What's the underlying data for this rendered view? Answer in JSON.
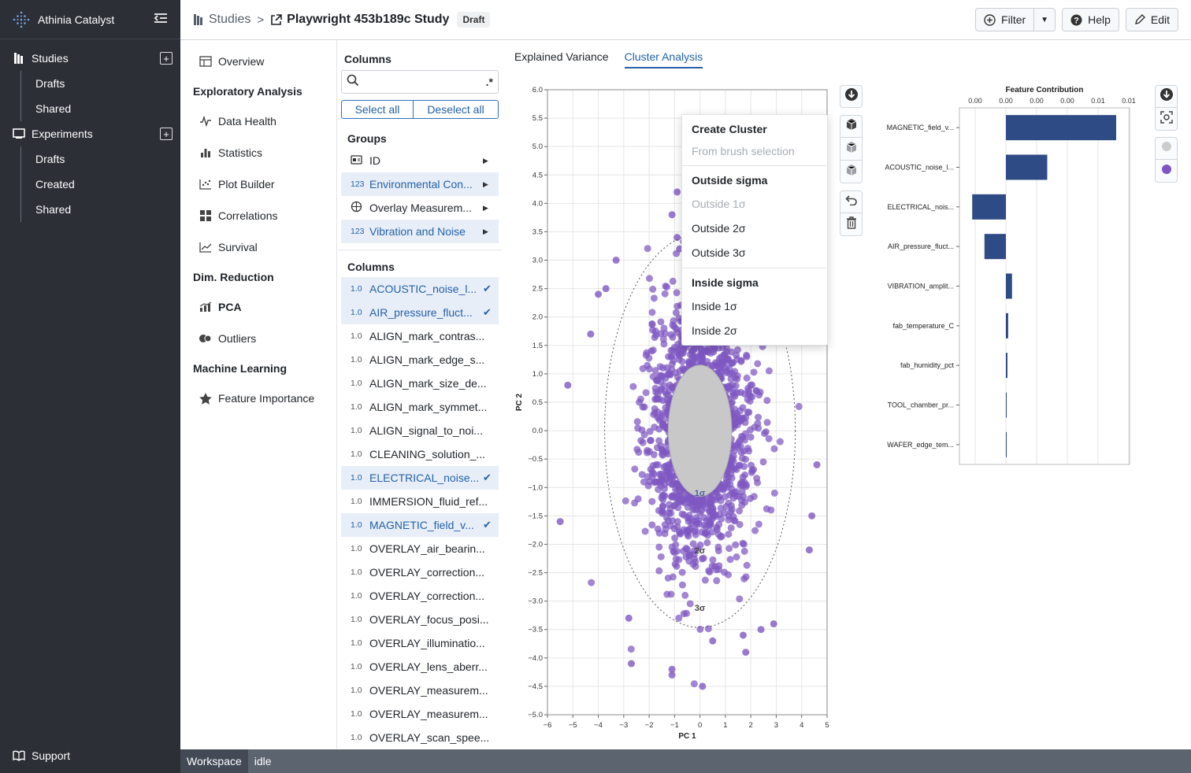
{
  "app": {
    "name": "Athinia Catalyst"
  },
  "sidebar": {
    "sections": [
      {
        "label": "Studies",
        "items": [
          "Drafts",
          "Shared"
        ]
      },
      {
        "label": "Experiments",
        "items": [
          "Drafts",
          "Created",
          "Shared"
        ]
      }
    ],
    "support": "Support"
  },
  "breadcrumb": {
    "root": "Studies",
    "separator": ">",
    "title": "Playwright 453b189c Study",
    "badge": "Draft"
  },
  "toolbar": {
    "filter": "Filter",
    "help": "Help",
    "edit": "Edit"
  },
  "nav": {
    "overview": "Overview",
    "groups": [
      {
        "heading": "Exploratory Analysis",
        "items": [
          "Data Health",
          "Statistics",
          "Plot Builder",
          "Correlations",
          "Survival"
        ]
      },
      {
        "heading": "Dim. Reduction",
        "items": [
          "PCA",
          "Outliers"
        ]
      },
      {
        "heading": "Machine Learning",
        "items": [
          "Feature Importance"
        ]
      }
    ],
    "active": "PCA"
  },
  "columns_panel": {
    "title": "Columns",
    "search_placeholder": "",
    "regex_label": ".*",
    "select_all": "Select all",
    "deselect_all": "Deselect all",
    "groups_heading": "Groups",
    "groups": [
      {
        "name": "ID",
        "icon": "id-card-icon",
        "selected": false
      },
      {
        "name": "Environmental Con...",
        "type": "123",
        "selected": true
      },
      {
        "name": "Overlay Measurem...",
        "icon": "crosshair-icon",
        "selected": false
      },
      {
        "name": "Vibration and Noise",
        "type": "123",
        "selected": true
      }
    ],
    "columns_heading": "Columns",
    "columns": [
      {
        "type": "1.0",
        "name": "ACOUSTIC_noise_l...",
        "selected": true
      },
      {
        "type": "1.0",
        "name": "AIR_pressure_fluct...",
        "selected": true
      },
      {
        "type": "1.0",
        "name": "ALIGN_mark_contras...",
        "selected": false
      },
      {
        "type": "1.0",
        "name": "ALIGN_mark_edge_s...",
        "selected": false
      },
      {
        "type": "1.0",
        "name": "ALIGN_mark_size_de...",
        "selected": false
      },
      {
        "type": "1.0",
        "name": "ALIGN_mark_symmet...",
        "selected": false
      },
      {
        "type": "1.0",
        "name": "ALIGN_signal_to_noi...",
        "selected": false
      },
      {
        "type": "1.0",
        "name": "CLEANING_solution_...",
        "selected": false
      },
      {
        "type": "1.0",
        "name": "ELECTRICAL_noise...",
        "selected": true
      },
      {
        "type": "1.0",
        "name": "IMMERSION_fluid_ref...",
        "selected": false
      },
      {
        "type": "1.0",
        "name": "MAGNETIC_field_v...",
        "selected": true
      },
      {
        "type": "1.0",
        "name": "OVERLAY_air_bearin...",
        "selected": false
      },
      {
        "type": "1.0",
        "name": "OVERLAY_correction...",
        "selected": false
      },
      {
        "type": "1.0",
        "name": "OVERLAY_correction...",
        "selected": false
      },
      {
        "type": "1.0",
        "name": "OVERLAY_focus_posi...",
        "selected": false
      },
      {
        "type": "1.0",
        "name": "OVERLAY_illuminatio...",
        "selected": false
      },
      {
        "type": "1.0",
        "name": "OVERLAY_lens_aberr...",
        "selected": false
      },
      {
        "type": "1.0",
        "name": "OVERLAY_measurem...",
        "selected": false
      },
      {
        "type": "1.0",
        "name": "OVERLAY_measurem...",
        "selected": false
      },
      {
        "type": "1.0",
        "name": "OVERLAY_scan_spee...",
        "selected": false
      }
    ]
  },
  "tabs": [
    {
      "label": "Explained Variance",
      "active": false
    },
    {
      "label": "Cluster Analysis",
      "active": true
    }
  ],
  "context_menu": {
    "create_heading": "Create Cluster",
    "from_brush": "From brush selection",
    "outside_heading": "Outside sigma",
    "outside_items": [
      {
        "label": "Outside 1σ",
        "disabled": true
      },
      {
        "label": "Outside 2σ",
        "disabled": false
      },
      {
        "label": "Outside 3σ",
        "disabled": false
      }
    ],
    "inside_heading": "Inside sigma",
    "inside_items": [
      {
        "label": "Inside 1σ",
        "disabled": false
      },
      {
        "label": "Inside 2σ",
        "disabled": false
      }
    ]
  },
  "chart_data": [
    {
      "type": "scatter",
      "xlabel": "PC 1",
      "ylabel": "PC 2",
      "xlim": [
        -6,
        5
      ],
      "ylim": [
        -5,
        6
      ],
      "xticks": [
        -6,
        -5,
        -4,
        -3,
        -2,
        -1,
        0,
        1,
        2,
        3,
        4,
        5
      ],
      "yticks": [
        -5.0,
        -4.5,
        -4.0,
        -3.5,
        -3.0,
        -2.5,
        -2.0,
        -1.5,
        -1.0,
        -0.5,
        0.0,
        0.5,
        1.0,
        1.5,
        2.0,
        2.5,
        3.0,
        3.5,
        4.0,
        4.5,
        5.0,
        5.5,
        6.0
      ],
      "grid": true,
      "point_color": "#7e57c2",
      "ellipse_fill_color": "#c8c8c8",
      "center": [
        0,
        0
      ],
      "sigma": [
        1.0,
        1.1
      ],
      "ellipse_labels": [
        "1σ",
        "2σ",
        "3σ"
      ],
      "points_shown_in_legend": false,
      "outlier_points": [
        [
          -0.9,
          4.2
        ],
        [
          -1.1,
          3.8
        ],
        [
          -1.1,
          -4.2
        ],
        [
          -1.1,
          -4.3
        ],
        [
          0.1,
          -4.5
        ],
        [
          -2.7,
          -4.1
        ],
        [
          -2.8,
          -3.3
        ],
        [
          -5.5,
          -1.6
        ],
        [
          -5.2,
          0.8
        ],
        [
          -3.7,
          2.5
        ],
        [
          -4.0,
          2.4
        ],
        [
          -0.9,
          3.4
        ],
        [
          -0.8,
          3.2
        ],
        [
          1.7,
          -3.6
        ],
        [
          1.8,
          -3.9
        ],
        [
          2.4,
          -3.5
        ],
        [
          2.9,
          -3.4
        ],
        [
          4.6,
          -0.6
        ],
        [
          4.4,
          -1.5
        ],
        [
          4.3,
          -2.1
        ],
        [
          0.5,
          -3.7
        ],
        [
          -3.3,
          3.0
        ],
        [
          -4.3,
          1.7
        ]
      ]
    },
    {
      "type": "bar",
      "orientation": "horizontal",
      "title": "Feature Contribution",
      "categories": [
        "MAGNETIC_field_v...",
        "ACOUSTIC_noise_l...",
        "ELECTRICAL_nois...",
        "AIR_pressure_fluct...",
        "VIBRATION_amplit...",
        "fab_temperature_C",
        "fab_humidity_pct",
        "TOOL_chamber_pr...",
        "WAFER_edge_tem..."
      ],
      "values": [
        0.0072,
        0.0027,
        -0.0022,
        -0.0014,
        0.0004,
        0.00015,
        0.0001,
        5e-05,
        0.0
      ],
      "xtick_labels": [
        "0.00",
        "0.00",
        "0.00",
        "0.00",
        "0.01",
        "0.01"
      ],
      "xlim": [
        -0.002,
        0.008
      ],
      "bar_color": "#2f4b85",
      "grid": true
    }
  ],
  "legend_toggles": {
    "colors": [
      "#cccccc",
      "#7e57c2"
    ]
  },
  "status": {
    "workspace": "Workspace",
    "state": "idle"
  }
}
